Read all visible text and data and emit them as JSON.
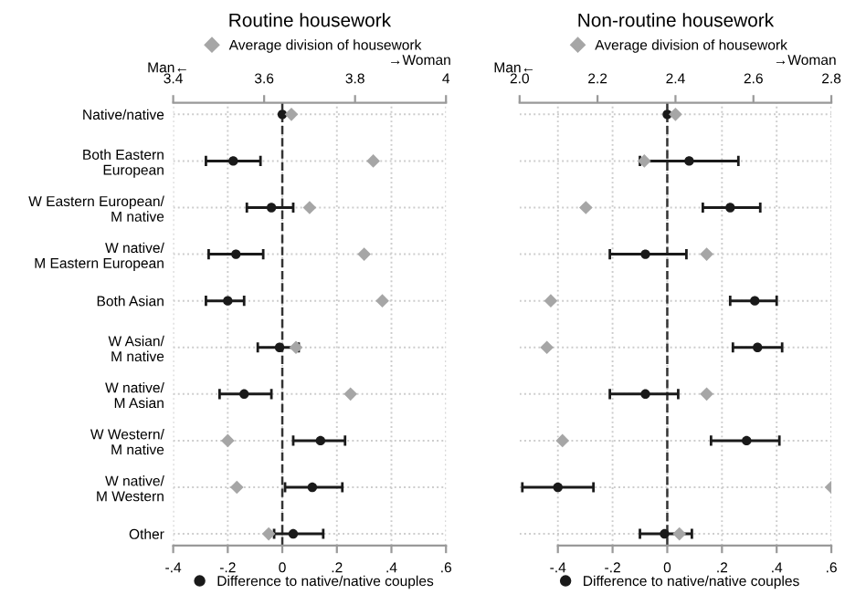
{
  "chart_data": [
    {
      "type": "scatter",
      "title": "Routine housework",
      "categories": [
        "Native/native",
        "Both Eastern\nEuropean",
        "W Eastern European/\nM native",
        "W native/\nM Eastern European",
        "Both Asian",
        "W Asian/\nM native",
        "W native/\nM Asian",
        "W Western/\nM native",
        "W native/\nM Western",
        "Other"
      ],
      "series": [
        {
          "name": "Average division of housework",
          "color": "#a6a6a6",
          "marker": "diamond",
          "axis": "x2",
          "values": [
            3.66,
            3.84,
            3.7,
            3.82,
            3.86,
            3.67,
            3.79,
            3.52,
            3.54,
            3.61
          ]
        },
        {
          "name": "Difference to native/native couples",
          "color": "#1a1a1a",
          "marker": "circle",
          "values": [
            0.0,
            -0.18,
            -0.04,
            -0.17,
            -0.2,
            -0.01,
            -0.14,
            0.14,
            0.11,
            0.04
          ],
          "errors": [
            null,
            [
              -0.28,
              -0.08
            ],
            [
              -0.13,
              0.04
            ],
            [
              -0.27,
              -0.07
            ],
            [
              -0.28,
              -0.14
            ],
            [
              -0.09,
              0.06
            ],
            [
              -0.23,
              -0.04
            ],
            [
              0.04,
              0.23
            ],
            [
              0.01,
              0.22
            ],
            [
              -0.03,
              0.15
            ]
          ]
        }
      ],
      "orientation": "horizontal",
      "xlim": [
        -0.4,
        0.6
      ],
      "xticks": [
        {
          "value": -0.4,
          "label": "-.4"
        },
        {
          "value": -0.2,
          "label": "-.2"
        },
        0,
        {
          "value": 0.2,
          "label": ".2"
        },
        {
          "value": 0.4,
          "label": ".4"
        },
        {
          "value": 0.6,
          "label": ".6"
        }
      ],
      "x2lim": [
        3.4,
        4.0
      ],
      "x2ticks": [
        3.4,
        3.6,
        3.8,
        {
          "value": 4.0,
          "label": "4"
        }
      ],
      "annotations": [
        "Man←",
        "→Woman"
      ],
      "ref_lines": [
        {
          "axis": "x",
          "value": 0,
          "color": "#333333",
          "line_style": "dashed"
        }
      ],
      "grid": true,
      "legend": "top"
    },
    {
      "type": "scatter",
      "title": "Non-routine housework",
      "categories": [
        null,
        null,
        null,
        null,
        null,
        null,
        null,
        null,
        null,
        null
      ],
      "series": [
        {
          "name": "Average division of housework",
          "color": "#a6a6a6",
          "marker": "diamond",
          "axis": "x2",
          "values": [
            2.4,
            2.32,
            2.17,
            2.48,
            2.08,
            2.07,
            2.48,
            2.11,
            2.8,
            2.41
          ]
        },
        {
          "name": "Difference to native/native couples",
          "color": "#1a1a1a",
          "marker": "circle",
          "values": [
            0.0,
            0.08,
            0.23,
            -0.08,
            0.32,
            0.33,
            -0.08,
            0.29,
            -0.4,
            -0.01
          ],
          "errors": [
            null,
            [
              -0.1,
              0.26
            ],
            [
              0.13,
              0.34
            ],
            [
              -0.21,
              0.07
            ],
            [
              0.23,
              0.4
            ],
            [
              0.24,
              0.42
            ],
            [
              -0.21,
              0.04
            ],
            [
              0.16,
              0.41
            ],
            [
              -0.53,
              -0.27
            ],
            [
              -0.1,
              0.09
            ]
          ]
        }
      ],
      "orientation": "horizontal",
      "xlim": [
        -0.54,
        0.6
      ],
      "xticks": [
        {
          "value": -0.4,
          "label": "-.4"
        },
        {
          "value": -0.2,
          "label": "-.2"
        },
        0,
        {
          "value": 0.2,
          "label": ".2"
        },
        {
          "value": 0.4,
          "label": ".4"
        },
        {
          "value": 0.6,
          "label": ".6"
        }
      ],
      "x2lim": [
        2.0,
        2.8
      ],
      "x2ticks": [
        {
          "value": 2.0,
          "label": "2.0"
        },
        2.2,
        2.4,
        2.6,
        2.8
      ],
      "annotations": [
        "Man←",
        "→Woman"
      ],
      "ref_lines": [
        {
          "axis": "x",
          "value": 0,
          "color": "#333333",
          "line_style": "dashed"
        }
      ],
      "grid": true,
      "legend": "top",
      "tick_labels": "x"
    }
  ]
}
